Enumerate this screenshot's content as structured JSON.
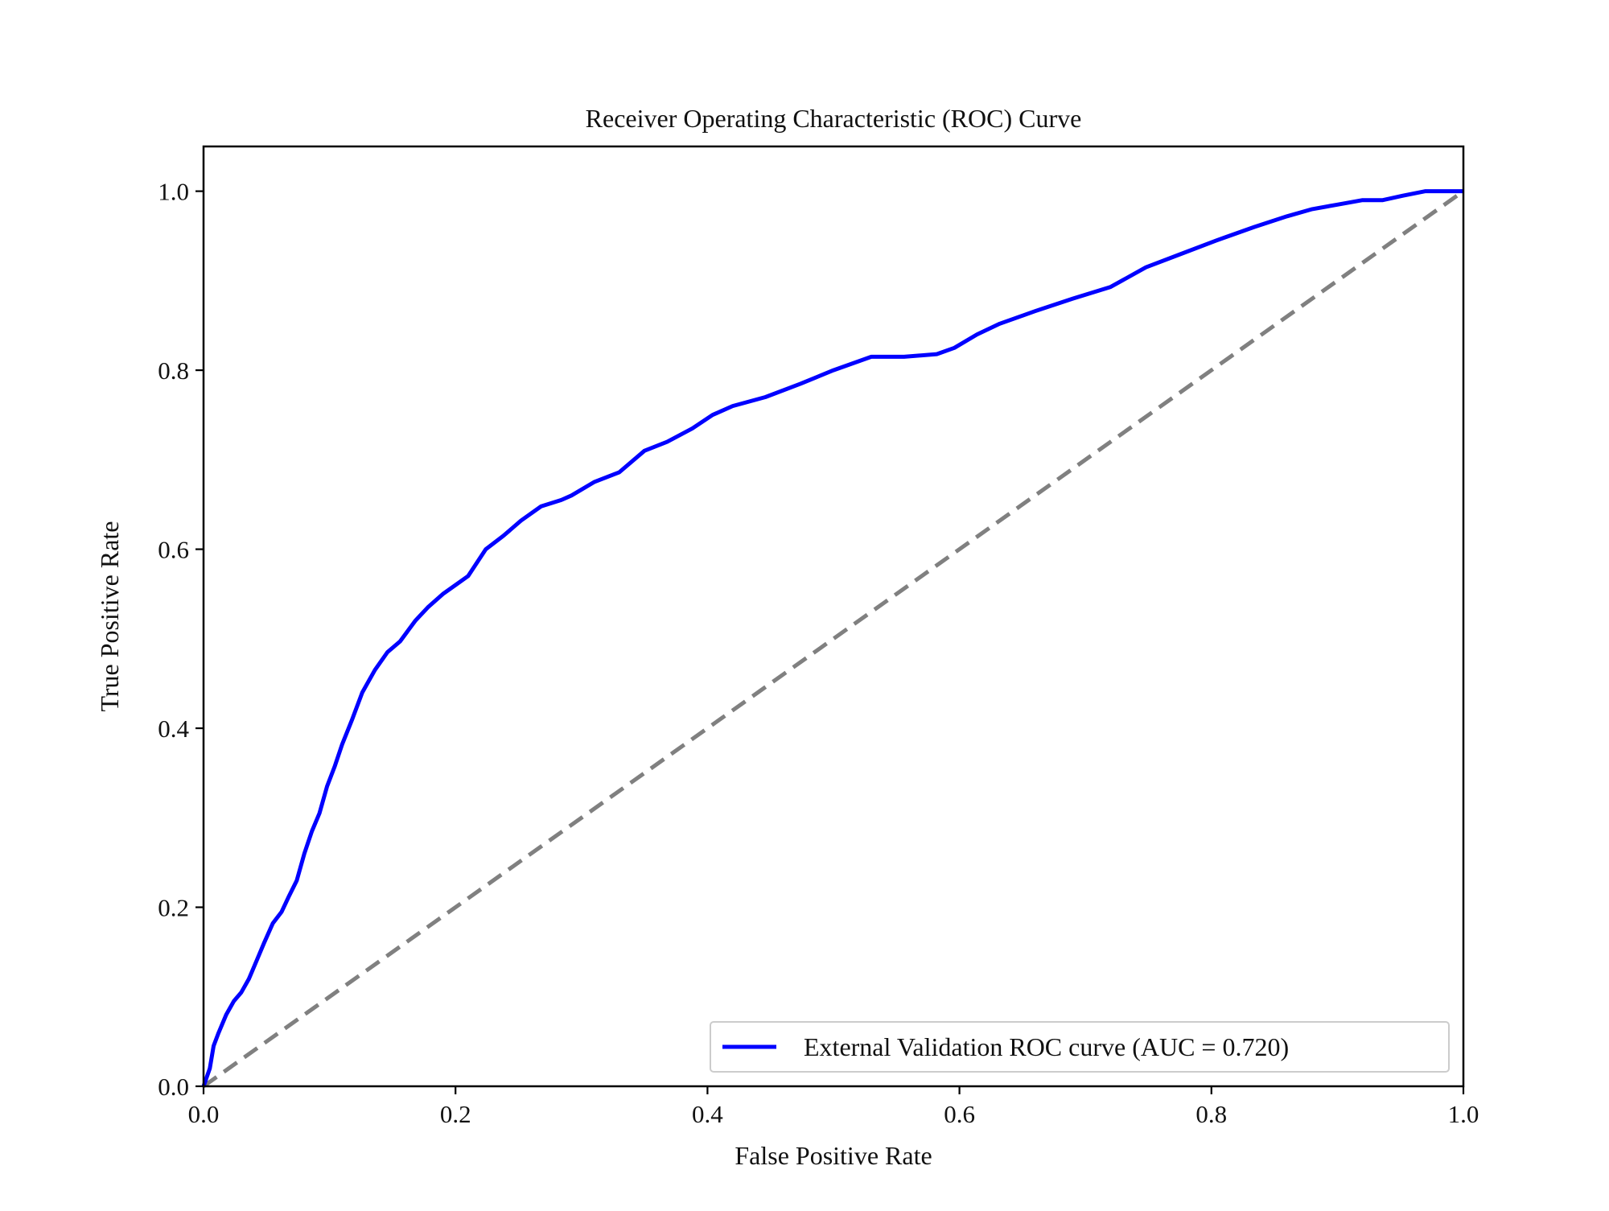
{
  "chart_data": {
    "type": "line",
    "title": "Receiver Operating Characteristic (ROC) Curve",
    "xlabel": "False Positive Rate",
    "ylabel": "True Positive Rate",
    "xlim": [
      0,
      1
    ],
    "ylim": [
      0,
      1.05
    ],
    "xticks": [
      0.0,
      0.2,
      0.4,
      0.6,
      0.8,
      1.0
    ],
    "yticks": [
      0.0,
      0.2,
      0.4,
      0.6,
      0.8,
      1.0
    ],
    "xtick_labels": [
      "0.0",
      "0.2",
      "0.4",
      "0.6",
      "0.8",
      "1.0"
    ],
    "ytick_labels": [
      "0.0",
      "0.2",
      "0.4",
      "0.6",
      "0.8",
      "1.0"
    ],
    "grid": false,
    "legend_position": "lower-right",
    "series": [
      {
        "name": "External Validation ROC curve (AUC = 0.720)",
        "color": "#0000ff",
        "style": "solid",
        "x": [
          0.0,
          0.005,
          0.008,
          0.012,
          0.018,
          0.024,
          0.03,
          0.036,
          0.042,
          0.048,
          0.055,
          0.062,
          0.068,
          0.074,
          0.08,
          0.086,
          0.092,
          0.098,
          0.104,
          0.11,
          0.118,
          0.126,
          0.136,
          0.146,
          0.156,
          0.168,
          0.178,
          0.19,
          0.2,
          0.21,
          0.224,
          0.238,
          0.252,
          0.268,
          0.284,
          0.292,
          0.31,
          0.33,
          0.35,
          0.368,
          0.388,
          0.404,
          0.42,
          0.446,
          0.474,
          0.5,
          0.53,
          0.556,
          0.582,
          0.596,
          0.614,
          0.632,
          0.66,
          0.69,
          0.72,
          0.748,
          0.776,
          0.804,
          0.834,
          0.86,
          0.88,
          0.9,
          0.92,
          0.936,
          0.952,
          0.97,
          0.98,
          1.0
        ],
        "y": [
          0.0,
          0.02,
          0.045,
          0.06,
          0.08,
          0.095,
          0.105,
          0.12,
          0.14,
          0.16,
          0.182,
          0.195,
          0.213,
          0.23,
          0.26,
          0.285,
          0.305,
          0.335,
          0.357,
          0.382,
          0.41,
          0.44,
          0.465,
          0.485,
          0.497,
          0.52,
          0.535,
          0.55,
          0.56,
          0.57,
          0.6,
          0.615,
          0.632,
          0.648,
          0.655,
          0.66,
          0.675,
          0.686,
          0.71,
          0.72,
          0.735,
          0.75,
          0.76,
          0.77,
          0.785,
          0.8,
          0.815,
          0.815,
          0.818,
          0.825,
          0.84,
          0.852,
          0.866,
          0.88,
          0.893,
          0.915,
          0.93,
          0.945,
          0.96,
          0.972,
          0.98,
          0.985,
          0.99,
          0.99,
          0.995,
          1.0,
          1.0,
          1.0
        ]
      },
      {
        "name": "",
        "color": "#808080",
        "style": "dashed",
        "x": [
          0.0,
          1.0
        ],
        "y": [
          0.0,
          1.0
        ]
      }
    ]
  }
}
